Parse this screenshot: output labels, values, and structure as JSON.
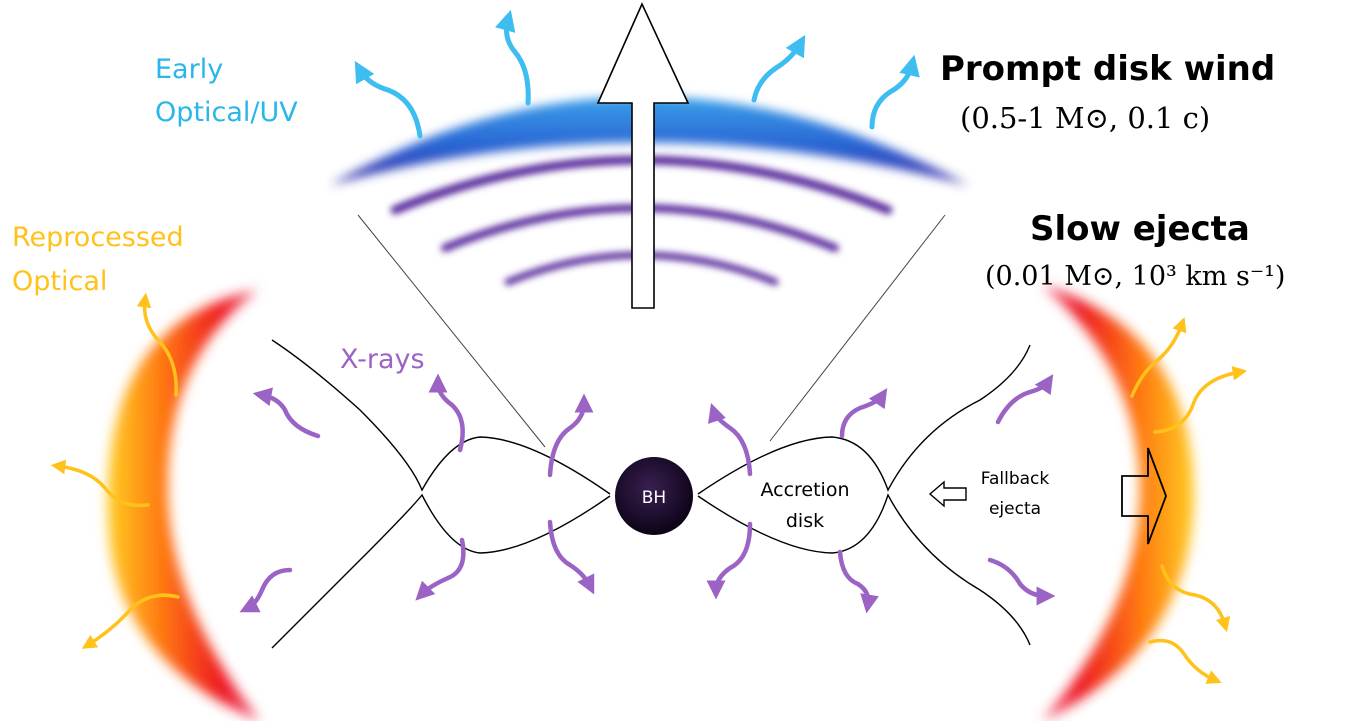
{
  "labels": {
    "early_optical": [
      "Early",
      "Optical/UV"
    ],
    "prompt_wind_title": "Prompt disk wind",
    "prompt_wind_params": "(0.5-1 M⊙, 0.1 c)",
    "reprocessed_optical": [
      "Reprocessed",
      "Optical"
    ],
    "slow_ejecta_title": "Slow ejecta",
    "slow_ejecta_params": "(0.01 M⊙, 10³ km s⁻¹)",
    "xrays": "X-rays",
    "bh": "BH",
    "accretion_disk": [
      "Accretion",
      "disk"
    ],
    "fallback_ejecta": [
      "Fallback",
      "ejecta"
    ]
  },
  "colors": {
    "early_optical": "#29b6e8",
    "reprocessed_optical": "#ffc21a",
    "xrays": "#9a63c4",
    "wind_blue": "#2a6fd6",
    "wind_purple": "#5a2a9a",
    "ejecta_red": "#e8141e",
    "ejecta_orange": "#ff8c10",
    "bh": "#1a0c2a"
  },
  "icons": {
    "optical_arrow": "wavy-arrow-icon",
    "xray_arrow": "wavy-arrow-icon",
    "outflow_arrow": "outline-arrow-icon"
  }
}
